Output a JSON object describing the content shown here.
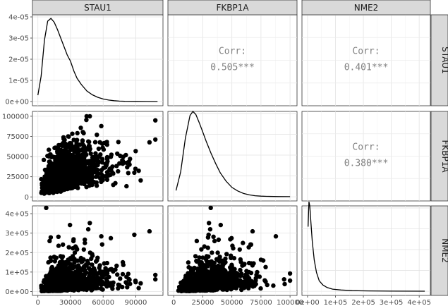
{
  "chart_data": {
    "type": "scatter",
    "variables": [
      "STAU1",
      "FKBP1A",
      "NME2"
    ],
    "correlations": [
      {
        "row": "STAU1",
        "col": "FKBP1A",
        "label": "Corr:",
        "value": "0.505***"
      },
      {
        "row": "STAU1",
        "col": "NME2",
        "label": "Corr:",
        "value": "0.401***"
      },
      {
        "row": "FKBP1A",
        "col": "NME2",
        "label": "Corr:",
        "value": "0.380***"
      }
    ],
    "axes": {
      "STAU1": {
        "range": [
          -5000,
          115000
        ],
        "ticks": [
          0,
          30000,
          60000,
          90000
        ],
        "tick_labels": [
          "0",
          "30000",
          "60000",
          "90000"
        ]
      },
      "FKBP1A": {
        "range": [
          -5000,
          106000
        ],
        "ticks": [
          0,
          25000,
          50000,
          75000,
          100000
        ],
        "tick_labels": [
          "0",
          "25000",
          "50000",
          "75000",
          "100000"
        ]
      },
      "NME2": {
        "range": [
          -20000,
          440000
        ],
        "ticks": [
          0,
          100000,
          200000,
          300000,
          400000
        ],
        "tick_labels": [
          "0e+00",
          "1e+05",
          "2e+05",
          "3e+05",
          "4e+05"
        ]
      }
    },
    "density_yaxis": {
      "range": [
        -2000000,
        41000000
      ],
      "ticks": [
        0,
        10000000,
        20000000,
        30000000,
        40000000
      ],
      "tick_labels": [
        "0e+00",
        "1e-05",
        "2e-05",
        "3e-05",
        "4e-05"
      ],
      "display_scale": 1e-12
    },
    "densities": {
      "STAU1": [
        [
          0,
          3e-06
        ],
        [
          3000,
          1.2e-05
        ],
        [
          6000,
          2.9e-05
        ],
        [
          9000,
          3.8e-05
        ],
        [
          12000,
          3.93e-05
        ],
        [
          15000,
          3.75e-05
        ],
        [
          18000,
          3.4e-05
        ],
        [
          21000,
          3e-05
        ],
        [
          24000,
          2.6e-05
        ],
        [
          27000,
          2.2e-05
        ],
        [
          30000,
          1.9e-05
        ],
        [
          33000,
          1.45e-05
        ],
        [
          36000,
          1.1e-05
        ],
        [
          40000,
          8e-06
        ],
        [
          45000,
          5e-06
        ],
        [
          50000,
          3.2e-06
        ],
        [
          55000,
          2e-06
        ],
        [
          60000,
          1.2e-06
        ],
        [
          65000,
          7e-07
        ],
        [
          70000,
          4e-07
        ],
        [
          75000,
          2e-07
        ],
        [
          80000,
          1e-07
        ],
        [
          90000,
          5e-08
        ],
        [
          100000,
          2e-08
        ],
        [
          110000,
          1e-08
        ]
      ],
      "FKBP1A": [
        [
          2000,
          3e-06
        ],
        [
          6000,
          1.2e-05
        ],
        [
          10000,
          2.8e-05
        ],
        [
          14000,
          3.9e-05
        ],
        [
          16500,
          4.1e-05
        ],
        [
          19000,
          3.95e-05
        ],
        [
          22000,
          3.55e-05
        ],
        [
          25000,
          3.1e-05
        ],
        [
          28000,
          2.65e-05
        ],
        [
          32000,
          2.1e-05
        ],
        [
          36000,
          1.6e-05
        ],
        [
          40000,
          1.15e-05
        ],
        [
          45000,
          7.5e-06
        ],
        [
          50000,
          4.5e-06
        ],
        [
          55000,
          2.8e-06
        ],
        [
          60000,
          1.6e-06
        ],
        [
          65000,
          9e-07
        ],
        [
          70000,
          5e-07
        ],
        [
          75000,
          3e-07
        ],
        [
          80000,
          2e-07
        ],
        [
          90000,
          1e-07
        ],
        [
          100000,
          5e-08
        ]
      ],
      "NME2": [
        [
          2000,
          3.1e-05
        ],
        [
          5000,
          4.3e-05
        ],
        [
          8000,
          4.1e-05
        ],
        [
          12000,
          3.3e-05
        ],
        [
          17000,
          2.4e-05
        ],
        [
          24000,
          1.5e-05
        ],
        [
          32000,
          9e-06
        ],
        [
          42000,
          5e-06
        ],
        [
          55000,
          3e-06
        ],
        [
          70000,
          1.8e-06
        ],
        [
          90000,
          1e-06
        ],
        [
          120000,
          6e-07
        ],
        [
          160000,
          3e-07
        ],
        [
          220000,
          1.5e-07
        ],
        [
          300000,
          8e-08
        ],
        [
          420000,
          4e-08
        ]
      ]
    },
    "grid": true,
    "legend": "none"
  }
}
